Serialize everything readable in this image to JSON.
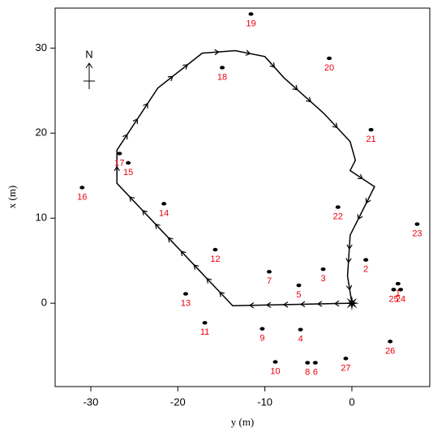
{
  "chart_data": {
    "type": "line",
    "xlabel": "y (m)",
    "ylabel": "x (m)",
    "north": "N",
    "xlim": [
      -34.1,
      8.95
    ],
    "ylim": [
      -9.8,
      34.7
    ],
    "xticks": [
      -30,
      -20,
      -10,
      0
    ],
    "yticks": [
      0,
      10,
      20,
      30
    ],
    "series": [
      {
        "name": "trajectory",
        "color": "#000000",
        "x": [
          0,
          -13.7,
          -27.0,
          -27.0,
          -22.3,
          -17.2,
          -13.4,
          -10.0,
          -7.8,
          -3.2,
          -0.2,
          0.4,
          -0.2,
          2.6,
          -0.2,
          -0.5,
          0
        ],
        "values": [
          0,
          -0.3,
          14.1,
          18.0,
          25.3,
          29.4,
          29.7,
          29.0,
          26.5,
          22.3,
          19.0,
          16.8,
          15.6,
          13.7,
          8.0,
          3.2,
          0
        ]
      }
    ],
    "landmarks": {
      "color": "#e8000b",
      "names": [
        "1",
        "2",
        "3",
        "4",
        "5",
        "6",
        "7",
        "8",
        "9",
        "10",
        "11",
        "12",
        "13",
        "14",
        "15",
        "16",
        "17",
        "18",
        "19",
        "20",
        "21",
        "22",
        "23",
        "24",
        "25",
        "26",
        "27"
      ],
      "x": [
        5.3,
        1.6,
        -3.3,
        -5.9,
        -6.1,
        -4.2,
        -9.5,
        -5.1,
        -10.3,
        -8.8,
        -16.9,
        -15.7,
        -19.1,
        -21.6,
        -25.7,
        -31.0,
        -26.7,
        -14.9,
        -11.6,
        -2.6,
        2.2,
        -1.6,
        7.5,
        5.6,
        4.8,
        4.4,
        -0.7
      ],
      "values": [
        2.3,
        5.1,
        4.0,
        -3.1,
        2.1,
        -7.0,
        3.7,
        -7.0,
        -3.0,
        -6.9,
        -2.3,
        6.3,
        1.1,
        11.7,
        16.5,
        13.6,
        17.6,
        27.7,
        34.0,
        28.8,
        20.4,
        11.3,
        9.3,
        1.6,
        1.6,
        -4.5,
        -6.5
      ]
    }
  }
}
